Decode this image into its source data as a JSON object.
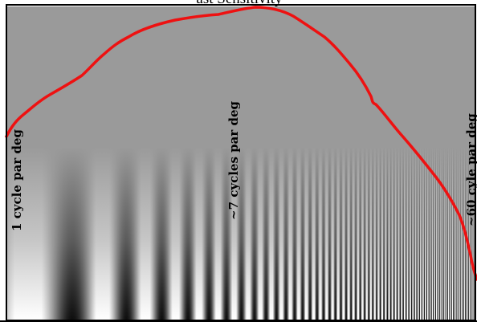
{
  "figure": {
    "title_partial": "ast Sensitivity",
    "labels": {
      "low_freq": "1 cycle par deg",
      "mid_freq": "~7 cycles par deg",
      "high_freq": "~60 cyle par deg"
    }
  },
  "colors": {
    "curve": "#ee1111",
    "background_gray": "#9a9a9a",
    "frame": "#000000",
    "page": "#ffffff"
  },
  "grating": {
    "description_free": true,
    "frequency_sweep": "logarithmic",
    "min_cycles_per_deg": 1,
    "max_cycles_per_deg": 60,
    "contrast_direction": "increases toward bottom"
  }
}
